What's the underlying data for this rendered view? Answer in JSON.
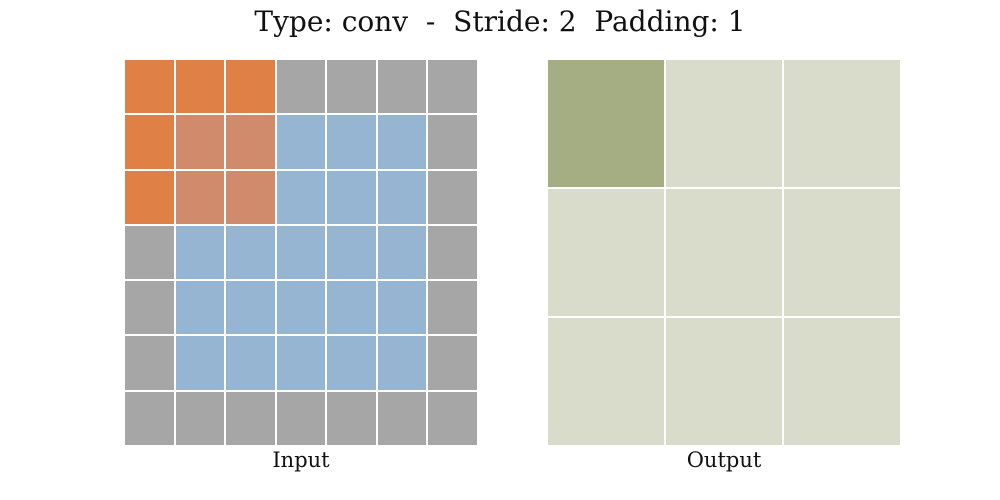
{
  "title": "Type: conv  -  Stride: 2  Padding: 1",
  "colors": {
    "padding": "#a6a6a6",
    "input": "#95b5d3",
    "kernel_on_padding": "#df8047",
    "kernel_on_input": "#cf8b6b",
    "output": "#dadccb",
    "output_active": "#a5ae83"
  },
  "input": {
    "label": "Input",
    "rows": 7,
    "cols": 7,
    "cells": [
      [
        "kernel_on_padding",
        "kernel_on_padding",
        "kernel_on_padding",
        "padding",
        "padding",
        "padding",
        "padding"
      ],
      [
        "kernel_on_padding",
        "kernel_on_input",
        "kernel_on_input",
        "input",
        "input",
        "input",
        "padding"
      ],
      [
        "kernel_on_padding",
        "kernel_on_input",
        "kernel_on_input",
        "input",
        "input",
        "input",
        "padding"
      ],
      [
        "padding",
        "input",
        "input",
        "input",
        "input",
        "input",
        "padding"
      ],
      [
        "padding",
        "input",
        "input",
        "input",
        "input",
        "input",
        "padding"
      ],
      [
        "padding",
        "input",
        "input",
        "input",
        "input",
        "input",
        "padding"
      ],
      [
        "padding",
        "padding",
        "padding",
        "padding",
        "padding",
        "padding",
        "padding"
      ]
    ]
  },
  "output": {
    "label": "Output",
    "rows": 3,
    "cols": 3,
    "cells": [
      [
        "output_active",
        "output",
        "output"
      ],
      [
        "output",
        "output",
        "output"
      ],
      [
        "output",
        "output",
        "output"
      ]
    ]
  }
}
